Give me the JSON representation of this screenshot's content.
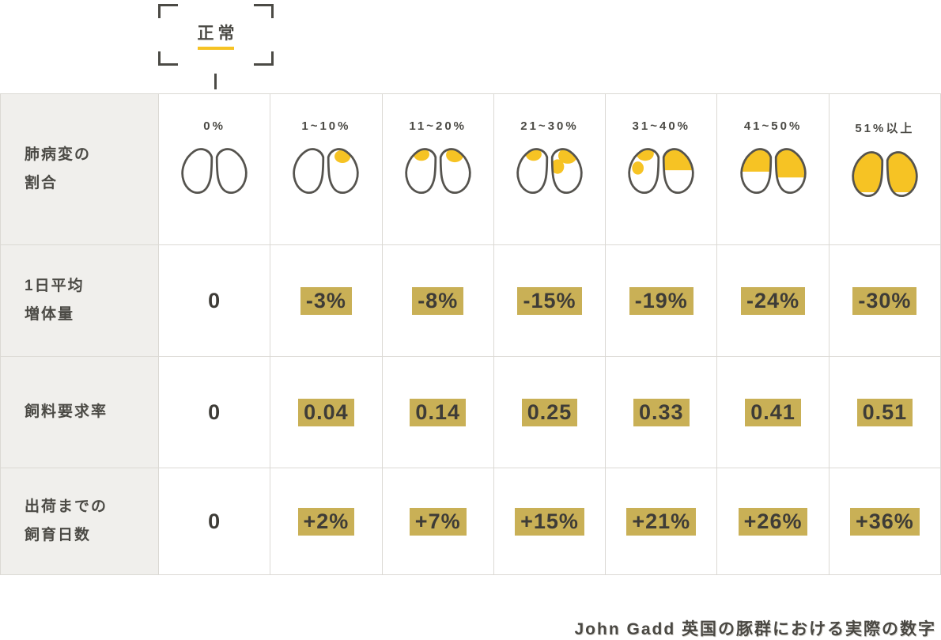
{
  "colors": {
    "accent_yellow": "#F6C324",
    "highlight": "#C9B056",
    "text": "#4B4A45",
    "border": "#DBD9D4",
    "header_bg": "#F0EFEC",
    "outline": "#55534E"
  },
  "normal_label": "正常",
  "table": {
    "corner_header": {
      "line1": "肺病変の",
      "line2": "割合"
    },
    "columns": [
      {
        "label": "0%",
        "coverage": 0
      },
      {
        "label": "1~10%",
        "coverage": 1
      },
      {
        "label": "11~20%",
        "coverage": 2
      },
      {
        "label": "21~30%",
        "coverage": 3
      },
      {
        "label": "31~40%",
        "coverage": 4
      },
      {
        "label": "41~50%",
        "coverage": 5
      },
      {
        "label": "51%以上",
        "coverage": 6
      }
    ],
    "rows": [
      {
        "line1": "1日平均",
        "line2": "増体量",
        "values": [
          "0",
          "-3%",
          "-8%",
          "-15%",
          "-19%",
          "-24%",
          "-30%"
        ]
      },
      {
        "line1": "飼料要求率",
        "line2": "",
        "values": [
          "0",
          "0.04",
          "0.14",
          "0.25",
          "0.33",
          "0.41",
          "0.51"
        ]
      },
      {
        "line1": "出荷までの",
        "line2": "飼育日数",
        "values": [
          "0",
          "+2%",
          "+7%",
          "+15%",
          "+21%",
          "+26%",
          "+36%"
        ]
      }
    ]
  },
  "caption": "John Gadd 英国の豚群における実際の数字",
  "chart_data": {
    "type": "table",
    "xlabel": "肺病変の割合",
    "categories": [
      "0%",
      "1~10%",
      "11~20%",
      "21~30%",
      "31~40%",
      "41~50%",
      "51%以上"
    ],
    "series": [
      {
        "name": "1日平均増体量",
        "values": [
          "0",
          "-3%",
          "-8%",
          "-15%",
          "-19%",
          "-24%",
          "-30%"
        ]
      },
      {
        "name": "飼料要求率",
        "values": [
          "0",
          "0.04",
          "0.14",
          "0.25",
          "0.33",
          "0.41",
          "0.51"
        ]
      },
      {
        "name": "出荷までの飼育日数",
        "values": [
          "0",
          "+2%",
          "+7%",
          "+15%",
          "+21%",
          "+26%",
          "+36%"
        ]
      }
    ],
    "annotations": [
      "正常"
    ],
    "source_note": "John Gadd 英国の豚群における実際の数字",
    "legend_position": "none",
    "grid": true
  }
}
